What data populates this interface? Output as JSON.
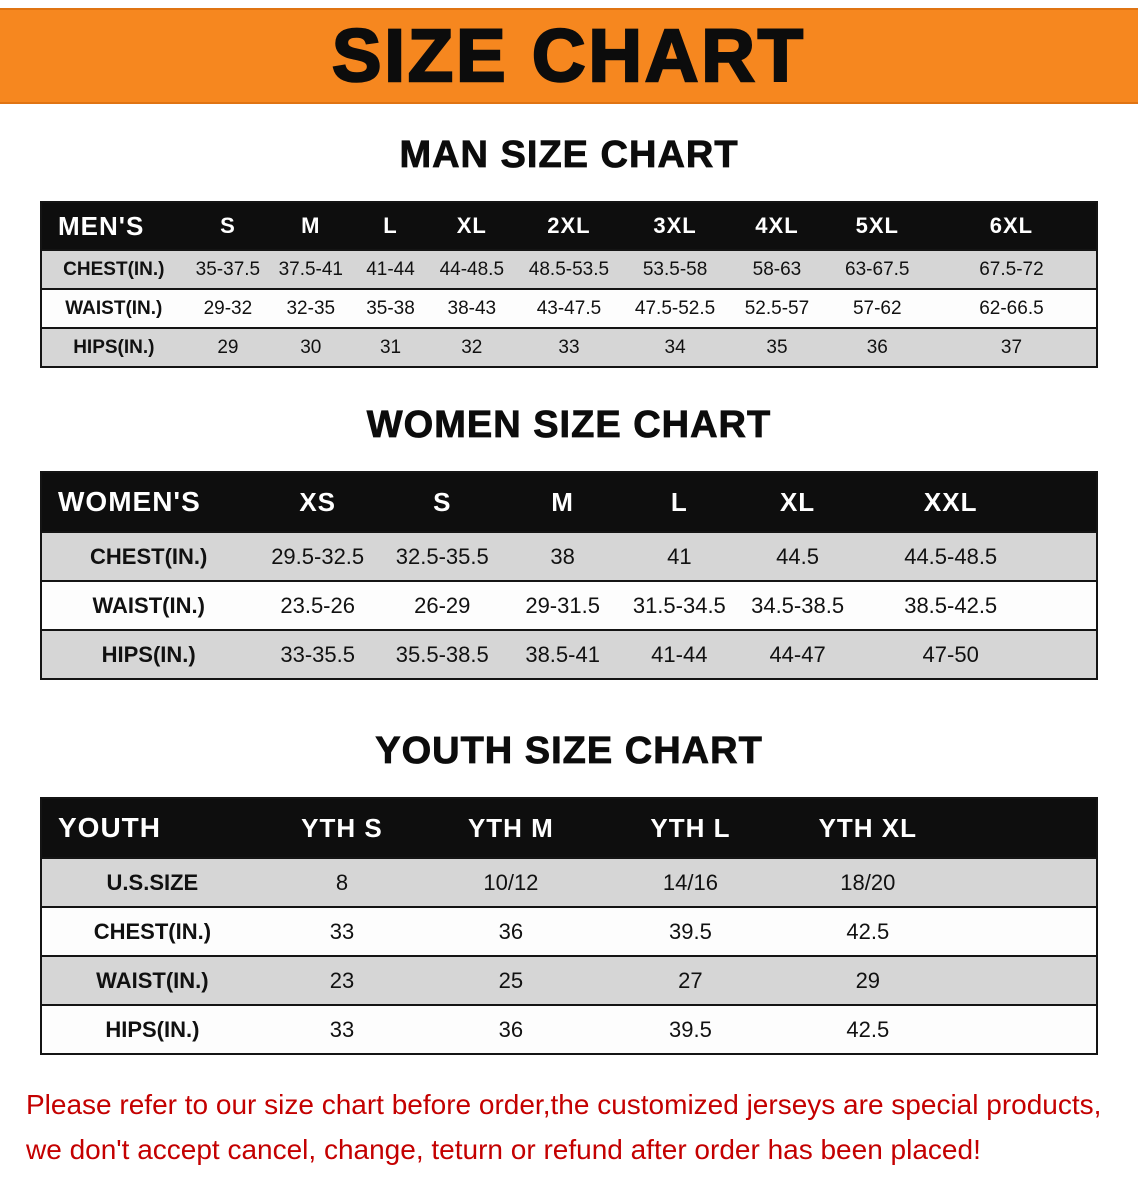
{
  "banner": {
    "title": "SIZE CHART",
    "bg_color": "#f6871f"
  },
  "sections": [
    {
      "id": "men",
      "heading": "MAN SIZE CHART",
      "table": {
        "header": [
          "MEN'S",
          "S",
          "M",
          "L",
          "XL",
          "2XL",
          "3XL",
          "4XL",
          "5XL",
          "6XL"
        ],
        "col_widths": [
          "13.7%",
          "8%",
          "7.7%",
          "7.4%",
          "8%",
          "10.4%",
          "9.7%",
          "9.6%",
          "9.4%",
          "16.1%"
        ],
        "rows": [
          [
            "CHEST(IN.)",
            "35-37.5",
            "37.5-41",
            "41-44",
            "44-48.5",
            "48.5-53.5",
            "53.5-58",
            "58-63",
            "63-67.5",
            "67.5-72"
          ],
          [
            "WAIST(IN.)",
            "29-32",
            "32-35",
            "35-38",
            "38-43",
            "43-47.5",
            "47.5-52.5",
            "52.5-57",
            "57-62",
            "62-66.5"
          ],
          [
            "HIPS(IN.)",
            "29",
            "30",
            "31",
            "32",
            "33",
            "34",
            "35",
            "36",
            "37"
          ]
        ]
      }
    },
    {
      "id": "women",
      "heading": "WOMEN SIZE CHART",
      "table": {
        "header": [
          "WOMEN'S",
          "XS",
          "S",
          "M",
          "L",
          "XL",
          "XXL"
        ],
        "col_widths": [
          "20.3%",
          "11.8%",
          "11.8%",
          "11%",
          "11.1%",
          "11.3%",
          "17.7%",
          "5%"
        ],
        "rows": [
          [
            "CHEST(IN.)",
            "29.5-32.5",
            "32.5-35.5",
            "38",
            "41",
            "44.5",
            "44.5-48.5"
          ],
          [
            "WAIST(IN.)",
            "23.5-26",
            "26-29",
            "29-31.5",
            "31.5-34.5",
            "34.5-38.5",
            "38.5-42.5"
          ],
          [
            "HIPS(IN.)",
            "33-35.5",
            "35.5-38.5",
            "38.5-41",
            "41-44",
            "44-47",
            "47-50"
          ]
        ]
      }
    },
    {
      "id": "youth",
      "heading": "YOUTH SIZE CHART",
      "table": {
        "header": [
          "YOUTH",
          "YTH S",
          "YTH M",
          "YTH L",
          "YTH XL"
        ],
        "col_widths": [
          "21%",
          "15%",
          "17%",
          "17%",
          "16.6%",
          "13.4%"
        ],
        "rows": [
          [
            "U.S.SIZE",
            "8",
            "10/12",
            "14/16",
            "18/20"
          ],
          [
            "CHEST(IN.)",
            "33",
            "36",
            "39.5",
            "42.5"
          ],
          [
            "WAIST(IN.)",
            "23",
            "25",
            "27",
            "29"
          ],
          [
            "HIPS(IN.)",
            "33",
            "36",
            "39.5",
            "42.5"
          ]
        ]
      }
    }
  ],
  "disclaimer": {
    "color": "#c40000",
    "lines": [
      "Please refer to our size chart before order,the customized jerseys are special products,",
      "we don't accept cancel, change, teturn or refund after order has been placed!"
    ]
  }
}
